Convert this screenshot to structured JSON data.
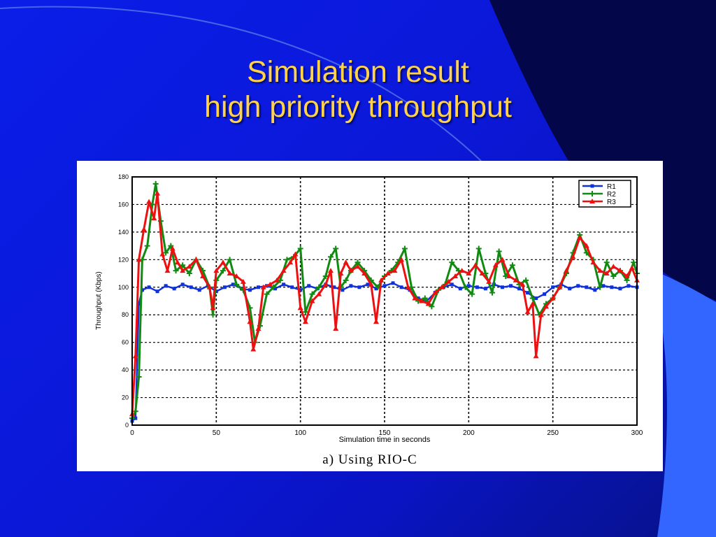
{
  "slide": {
    "title_line1": "Simulation result",
    "title_line2": "high priority throughput",
    "caption": "a) Using RIO-C"
  },
  "colors": {
    "title": "#ffd24a",
    "background": "#0a1ee8",
    "series_R1": "#1030d8",
    "series_R2": "#108a10",
    "series_R3": "#ee1010"
  },
  "chart_data": {
    "type": "line",
    "title": "",
    "xlabel": "Simulation time in seconds",
    "ylabel": "Throughput (Kbps)",
    "xlim": [
      0,
      300
    ],
    "ylim": [
      0,
      180
    ],
    "xticks": [
      0,
      50,
      100,
      150,
      200,
      250,
      300
    ],
    "yticks": [
      0,
      20,
      40,
      60,
      80,
      100,
      120,
      140,
      160,
      180
    ],
    "grid": true,
    "legend_position": "top-right",
    "series": [
      {
        "name": "R1",
        "color": "#1030d8",
        "marker": "square",
        "points": [
          [
            0,
            3
          ],
          [
            2,
            5
          ],
          [
            4,
            88
          ],
          [
            6,
            98
          ],
          [
            10,
            100
          ],
          [
            15,
            97
          ],
          [
            20,
            101
          ],
          [
            25,
            99
          ],
          [
            30,
            102
          ],
          [
            35,
            100
          ],
          [
            40,
            98
          ],
          [
            45,
            101
          ],
          [
            50,
            97
          ],
          [
            55,
            100
          ],
          [
            60,
            102
          ],
          [
            65,
            99
          ],
          [
            70,
            98
          ],
          [
            75,
            100
          ],
          [
            80,
            101
          ],
          [
            85,
            99
          ],
          [
            90,
            102
          ],
          [
            95,
            100
          ],
          [
            100,
            98
          ],
          [
            105,
            101
          ],
          [
            110,
            99
          ],
          [
            115,
            102
          ],
          [
            120,
            100
          ],
          [
            125,
            98
          ],
          [
            130,
            101
          ],
          [
            135,
            100
          ],
          [
            140,
            102
          ],
          [
            145,
            99
          ],
          [
            150,
            101
          ],
          [
            155,
            103
          ],
          [
            160,
            100
          ],
          [
            165,
            98
          ],
          [
            170,
            92
          ],
          [
            175,
            90
          ],
          [
            180,
            96
          ],
          [
            185,
            100
          ],
          [
            190,
            102
          ],
          [
            195,
            99
          ],
          [
            200,
            101
          ],
          [
            205,
            100
          ],
          [
            210,
            99
          ],
          [
            215,
            102
          ],
          [
            220,
            100
          ],
          [
            225,
            101
          ],
          [
            230,
            99
          ],
          [
            235,
            96
          ],
          [
            240,
            92
          ],
          [
            245,
            95
          ],
          [
            250,
            100
          ],
          [
            255,
            102
          ],
          [
            260,
            99
          ],
          [
            265,
            101
          ],
          [
            270,
            100
          ],
          [
            275,
            98
          ],
          [
            280,
            101
          ],
          [
            285,
            100
          ],
          [
            290,
            99
          ],
          [
            295,
            101
          ],
          [
            300,
            100
          ]
        ]
      },
      {
        "name": "R2",
        "color": "#108a10",
        "marker": "plus",
        "points": [
          [
            0,
            5
          ],
          [
            2,
            10
          ],
          [
            4,
            35
          ],
          [
            6,
            120
          ],
          [
            9,
            130
          ],
          [
            12,
            160
          ],
          [
            14,
            175
          ],
          [
            17,
            148
          ],
          [
            20,
            125
          ],
          [
            23,
            130
          ],
          [
            26,
            112
          ],
          [
            30,
            116
          ],
          [
            34,
            110
          ],
          [
            38,
            120
          ],
          [
            42,
            112
          ],
          [
            46,
            100
          ],
          [
            48,
            80
          ],
          [
            50,
            105
          ],
          [
            54,
            112
          ],
          [
            58,
            120
          ],
          [
            62,
            102
          ],
          [
            66,
            98
          ],
          [
            70,
            85
          ],
          [
            73,
            60
          ],
          [
            76,
            72
          ],
          [
            80,
            95
          ],
          [
            84,
            100
          ],
          [
            88,
            105
          ],
          [
            92,
            120
          ],
          [
            96,
            122
          ],
          [
            100,
            128
          ],
          [
            103,
            82
          ],
          [
            107,
            95
          ],
          [
            111,
            100
          ],
          [
            115,
            108
          ],
          [
            118,
            122
          ],
          [
            121,
            128
          ],
          [
            124,
            100
          ],
          [
            127,
            105
          ],
          [
            130,
            112
          ],
          [
            134,
            118
          ],
          [
            138,
            112
          ],
          [
            142,
            105
          ],
          [
            146,
            100
          ],
          [
            150,
            108
          ],
          [
            154,
            112
          ],
          [
            158,
            118
          ],
          [
            162,
            128
          ],
          [
            166,
            100
          ],
          [
            170,
            90
          ],
          [
            174,
            92
          ],
          [
            178,
            86
          ],
          [
            182,
            98
          ],
          [
            186,
            102
          ],
          [
            190,
            118
          ],
          [
            194,
            112
          ],
          [
            198,
            100
          ],
          [
            202,
            95
          ],
          [
            206,
            128
          ],
          [
            210,
            110
          ],
          [
            214,
            96
          ],
          [
            218,
            126
          ],
          [
            222,
            108
          ],
          [
            226,
            116
          ],
          [
            230,
            102
          ],
          [
            234,
            105
          ],
          [
            238,
            92
          ],
          [
            242,
            80
          ],
          [
            246,
            88
          ],
          [
            250,
            92
          ],
          [
            254,
            100
          ],
          [
            258,
            110
          ],
          [
            262,
            125
          ],
          [
            266,
            138
          ],
          [
            270,
            125
          ],
          [
            274,
            120
          ],
          [
            278,
            100
          ],
          [
            282,
            118
          ],
          [
            286,
            108
          ],
          [
            290,
            112
          ],
          [
            294,
            105
          ],
          [
            298,
            118
          ],
          [
            300,
            110
          ]
        ]
      },
      {
        "name": "R3",
        "color": "#ee1010",
        "marker": "triangle",
        "points": [
          [
            0,
            8
          ],
          [
            2,
            50
          ],
          [
            4,
            120
          ],
          [
            7,
            142
          ],
          [
            10,
            162
          ],
          [
            13,
            150
          ],
          [
            15,
            168
          ],
          [
            18,
            124
          ],
          [
            21,
            112
          ],
          [
            24,
            128
          ],
          [
            27,
            118
          ],
          [
            30,
            112
          ],
          [
            34,
            115
          ],
          [
            38,
            120
          ],
          [
            42,
            108
          ],
          [
            46,
            100
          ],
          [
            48,
            85
          ],
          [
            50,
            112
          ],
          [
            54,
            118
          ],
          [
            58,
            110
          ],
          [
            62,
            108
          ],
          [
            66,
            104
          ],
          [
            70,
            75
          ],
          [
            72,
            55
          ],
          [
            75,
            70
          ],
          [
            78,
            100
          ],
          [
            82,
            102
          ],
          [
            86,
            105
          ],
          [
            90,
            112
          ],
          [
            94,
            118
          ],
          [
            97,
            124
          ],
          [
            100,
            85
          ],
          [
            103,
            75
          ],
          [
            107,
            90
          ],
          [
            111,
            95
          ],
          [
            115,
            102
          ],
          [
            118,
            112
          ],
          [
            121,
            70
          ],
          [
            124,
            110
          ],
          [
            127,
            118
          ],
          [
            130,
            112
          ],
          [
            134,
            115
          ],
          [
            138,
            110
          ],
          [
            142,
            102
          ],
          [
            145,
            75
          ],
          [
            148,
            105
          ],
          [
            152,
            110
          ],
          [
            156,
            112
          ],
          [
            160,
            120
          ],
          [
            164,
            100
          ],
          [
            168,
            92
          ],
          [
            172,
            90
          ],
          [
            176,
            88
          ],
          [
            180,
            96
          ],
          [
            184,
            100
          ],
          [
            188,
            104
          ],
          [
            192,
            108
          ],
          [
            196,
            112
          ],
          [
            200,
            110
          ],
          [
            204,
            116
          ],
          [
            208,
            110
          ],
          [
            212,
            104
          ],
          [
            216,
            116
          ],
          [
            220,
            120
          ],
          [
            224,
            108
          ],
          [
            228,
            105
          ],
          [
            232,
            102
          ],
          [
            235,
            82
          ],
          [
            238,
            88
          ],
          [
            240,
            50
          ],
          [
            243,
            80
          ],
          [
            246,
            86
          ],
          [
            250,
            92
          ],
          [
            254,
            100
          ],
          [
            258,
            112
          ],
          [
            262,
            122
          ],
          [
            266,
            136
          ],
          [
            270,
            130
          ],
          [
            274,
            118
          ],
          [
            278,
            112
          ],
          [
            282,
            110
          ],
          [
            286,
            115
          ],
          [
            290,
            112
          ],
          [
            294,
            108
          ],
          [
            297,
            114
          ],
          [
            300,
            105
          ]
        ]
      }
    ]
  }
}
